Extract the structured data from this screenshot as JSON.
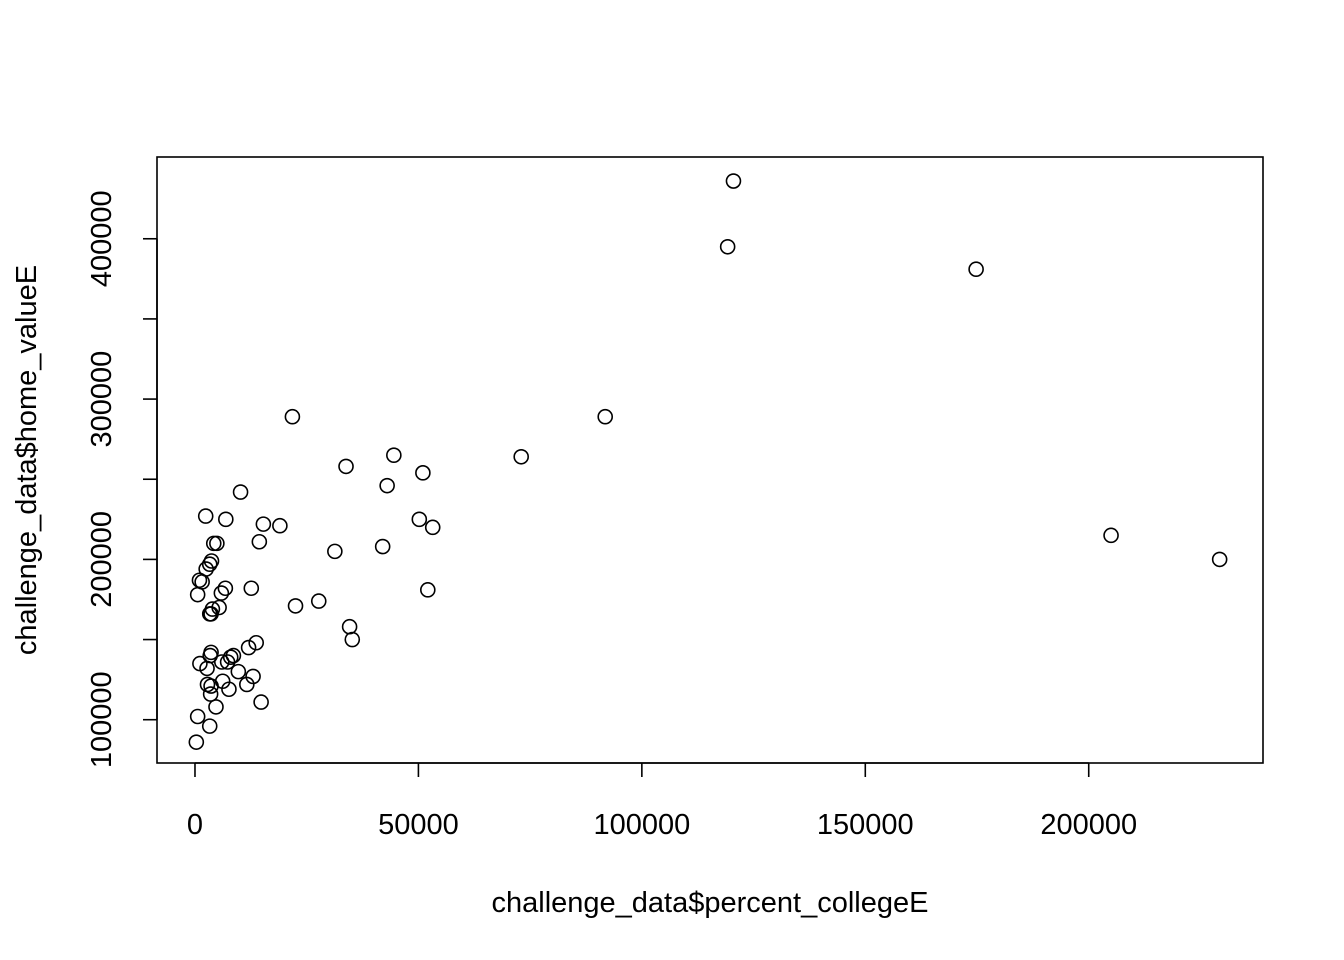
{
  "chart_data": {
    "type": "scatter",
    "title": "",
    "xlabel": "challenge_data$percent_collegeE",
    "ylabel": "challenge_data$home_valueE",
    "xlim": [
      -8500,
      239000
    ],
    "ylim": [
      73000,
      451000
    ],
    "xticks": [
      0,
      50000,
      100000,
      150000,
      200000
    ],
    "xtick_labels": [
      "0",
      "50000",
      "100000",
      "150000",
      "200000"
    ],
    "yticks": [
      100000,
      150000,
      200000,
      250000,
      300000,
      350000,
      400000
    ],
    "ytick_labels": [
      "100000",
      "",
      "200000",
      "",
      "300000",
      "",
      "400000"
    ],
    "grid": false,
    "legend": "none",
    "marker": "open-circle",
    "points": [
      {
        "x": 120500,
        "y": 436000
      },
      {
        "x": 119200,
        "y": 395000
      },
      {
        "x": 174800,
        "y": 381000
      },
      {
        "x": 91800,
        "y": 289000
      },
      {
        "x": 21800,
        "y": 289000
      },
      {
        "x": 73000,
        "y": 264000
      },
      {
        "x": 44500,
        "y": 265000
      },
      {
        "x": 33800,
        "y": 258000
      },
      {
        "x": 51000,
        "y": 254000
      },
      {
        "x": 43000,
        "y": 246000
      },
      {
        "x": 10200,
        "y": 242000
      },
      {
        "x": 2400,
        "y": 227000
      },
      {
        "x": 6900,
        "y": 225000
      },
      {
        "x": 50200,
        "y": 225000
      },
      {
        "x": 15300,
        "y": 222000
      },
      {
        "x": 19000,
        "y": 221000
      },
      {
        "x": 53200,
        "y": 220000
      },
      {
        "x": 205000,
        "y": 215000
      },
      {
        "x": 14400,
        "y": 211000
      },
      {
        "x": 4200,
        "y": 210000
      },
      {
        "x": 4900,
        "y": 210000
      },
      {
        "x": 42000,
        "y": 208000
      },
      {
        "x": 31300,
        "y": 205000
      },
      {
        "x": 229300,
        "y": 200000
      },
      {
        "x": 3700,
        "y": 199000
      },
      {
        "x": 3300,
        "y": 197000
      },
      {
        "x": 2500,
        "y": 194000
      },
      {
        "x": 1000,
        "y": 187000
      },
      {
        "x": 1600,
        "y": 186000
      },
      {
        "x": 6800,
        "y": 182000
      },
      {
        "x": 12600,
        "y": 182000
      },
      {
        "x": 52100,
        "y": 181000
      },
      {
        "x": 5900,
        "y": 179000
      },
      {
        "x": 600,
        "y": 178000
      },
      {
        "x": 27700,
        "y": 174000
      },
      {
        "x": 22500,
        "y": 171000
      },
      {
        "x": 5400,
        "y": 170000
      },
      {
        "x": 3900,
        "y": 169000
      },
      {
        "x": 3300,
        "y": 166000
      },
      {
        "x": 3600,
        "y": 166000
      },
      {
        "x": 34600,
        "y": 158000
      },
      {
        "x": 35200,
        "y": 150000
      },
      {
        "x": 13700,
        "y": 148000
      },
      {
        "x": 12000,
        "y": 145000
      },
      {
        "x": 3600,
        "y": 142000
      },
      {
        "x": 3400,
        "y": 140000
      },
      {
        "x": 8600,
        "y": 140000
      },
      {
        "x": 8000,
        "y": 139000
      },
      {
        "x": 7300,
        "y": 136000
      },
      {
        "x": 6000,
        "y": 136000
      },
      {
        "x": 1100,
        "y": 135000
      },
      {
        "x": 2700,
        "y": 132000
      },
      {
        "x": 9700,
        "y": 130000
      },
      {
        "x": 13000,
        "y": 127000
      },
      {
        "x": 6200,
        "y": 124000
      },
      {
        "x": 2800,
        "y": 122000
      },
      {
        "x": 11600,
        "y": 122000
      },
      {
        "x": 3600,
        "y": 121000
      },
      {
        "x": 7600,
        "y": 119000
      },
      {
        "x": 3500,
        "y": 116000
      },
      {
        "x": 14800,
        "y": 111000
      },
      {
        "x": 4700,
        "y": 108000
      },
      {
        "x": 600,
        "y": 102000
      },
      {
        "x": 3300,
        "y": 96000
      },
      {
        "x": 300,
        "y": 86000
      }
    ]
  }
}
